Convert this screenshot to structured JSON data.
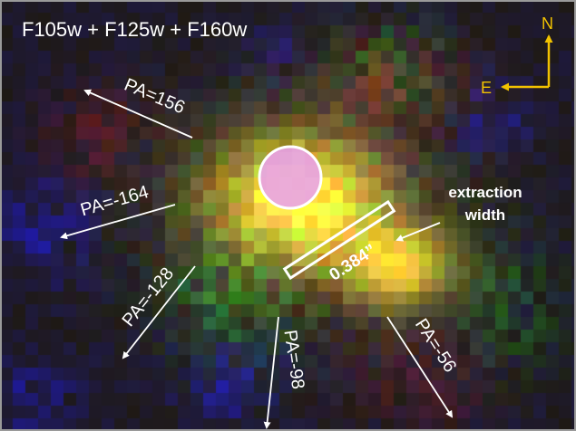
{
  "title": "F105w + F125w + F160w",
  "compass": {
    "north": "N",
    "east": "E",
    "color": "#f2c200"
  },
  "annotation": {
    "line1": "extraction",
    "line2": "width",
    "slit_width": "0.384”"
  },
  "position_angles": [
    "PA=156",
    "PA=-164",
    "PA=-128",
    "PA=-98",
    "PA=-56"
  ],
  "colors": {
    "label": "#ffffff",
    "core": "#f4d11a",
    "aperture_fill": "#e9a3e8",
    "aperture_edge": "#ffffff"
  }
}
